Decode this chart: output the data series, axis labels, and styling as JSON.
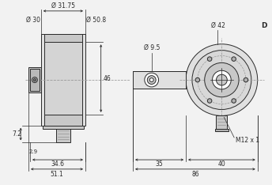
{
  "bg_color": "#f2f2f2",
  "line_color": "#2a2a2a",
  "dashed_color": "#999999",
  "fill_light": "#e0e0e0",
  "fill_mid": "#c8c8c8",
  "fill_dark": "#b0b0b0",
  "annotations": {
    "phi_31_75": "Ø 31.75",
    "phi_30": "Ø 30",
    "phi_50_8": "Ø 50.8",
    "phi_9_5": "Ø 9.5",
    "phi_42": "Ø 42",
    "D": "D",
    "dim_46": "46",
    "dim_7_2": "7.2",
    "dim_2_9": "2.9",
    "dim_34_6": "34.6",
    "dim_51_1": "51.1",
    "dim_35": "35",
    "dim_40": "40",
    "dim_86": "86",
    "M12x1": "M12 x 1"
  }
}
